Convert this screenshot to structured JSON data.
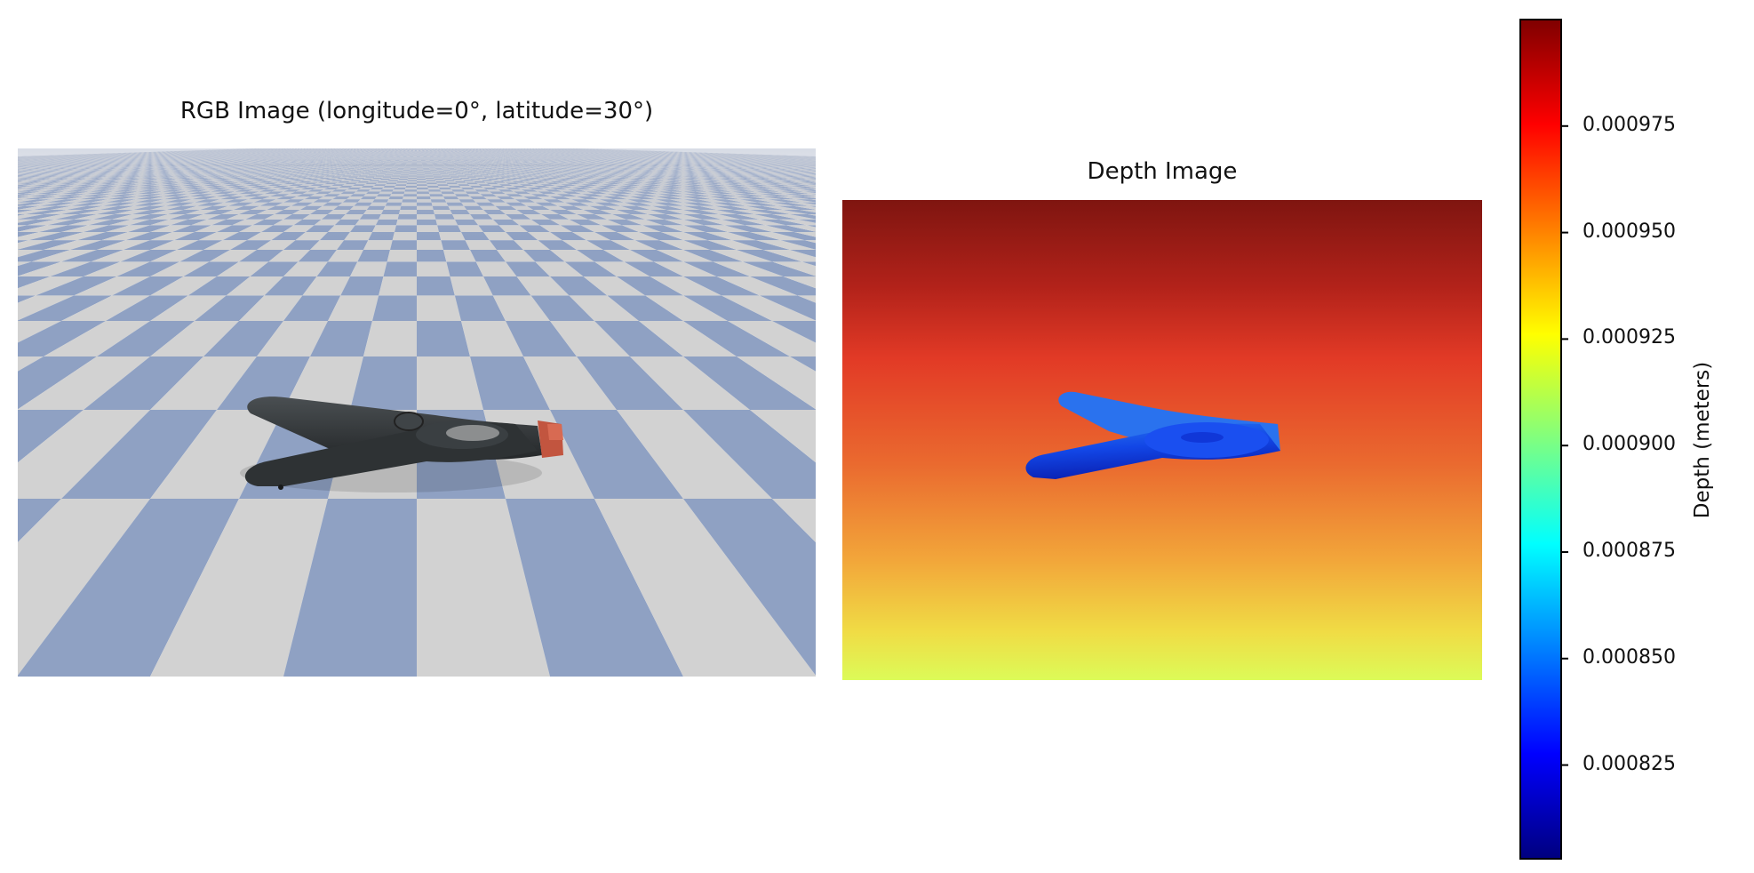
{
  "rgb_panel": {
    "title": "RGB Image (longitude=0°, latitude=30°)",
    "colors": {
      "checker_light": "#d2d2d2",
      "checker_blue": "#8fa1c3",
      "clamp_body": "#33373a",
      "clamp_tip": "#c2553f"
    }
  },
  "depth_panel": {
    "title": "Depth Image"
  },
  "colorbar": {
    "label": "Depth (meters)",
    "colormap": "jet",
    "ticks": [
      {
        "value": 0.000975,
        "label": "0.000975"
      },
      {
        "value": 0.00095,
        "label": "0.000950"
      },
      {
        "value": 0.000925,
        "label": "0.000925"
      },
      {
        "value": 0.0009,
        "label": "0.000900"
      },
      {
        "value": 0.000875,
        "label": "0.000875"
      },
      {
        "value": 0.00085,
        "label": "0.000850"
      },
      {
        "value": 0.000825,
        "label": "0.000825"
      }
    ],
    "range": [
      0.000803,
      0.001
    ]
  }
}
